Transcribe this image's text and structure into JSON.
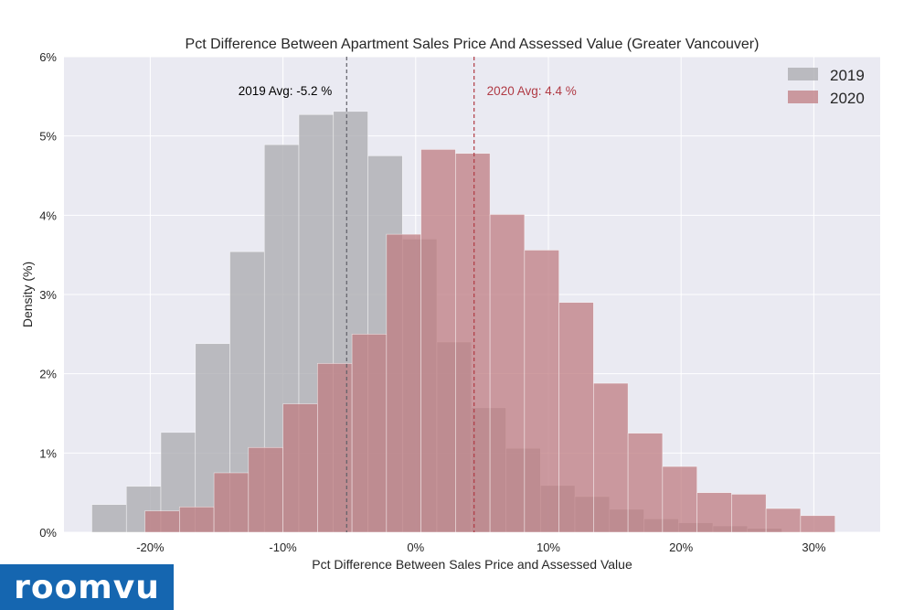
{
  "brand": {
    "logo_text": "roomvu",
    "color": "#1566b0"
  },
  "chart_data": {
    "type": "histogram",
    "title": "Pct Difference Between Apartment Sales Price And Assessed Value (Greater Vancouver)",
    "xlabel": "Pct Difference Between Sales Price and Assessed Value",
    "ylabel": "Density (%)",
    "xlim": [
      -26.5,
      35
    ],
    "ylim": [
      0,
      6
    ],
    "x_ticks": [
      -20,
      -10,
      0,
      10,
      20,
      30
    ],
    "x_tick_labels": [
      "-20%",
      "-10%",
      "0%",
      "10%",
      "20%",
      "30%"
    ],
    "y_ticks": [
      0,
      1,
      2,
      3,
      4,
      5,
      6
    ],
    "y_tick_labels": [
      "0%",
      "1%",
      "2%",
      "3%",
      "4%",
      "5%",
      "6%"
    ],
    "grid": true,
    "legend_position": "top-right",
    "series": [
      {
        "name": "2019",
        "color": "#a9a9ae",
        "bin_start": -24.4,
        "bin_width": 2.6,
        "values": [
          0.35,
          0.58,
          1.26,
          2.38,
          3.54,
          4.89,
          5.27,
          5.31,
          4.75,
          3.7,
          2.4,
          1.57,
          1.06,
          0.59,
          0.45,
          0.29,
          0.17,
          0.12,
          0.08,
          0.05
        ]
      },
      {
        "name": "2020",
        "color": "#bf7c82",
        "bin_start": -20.4,
        "bin_width": 2.6,
        "values": [
          0.27,
          0.32,
          0.75,
          1.07,
          1.62,
          2.13,
          2.5,
          3.76,
          4.83,
          4.78,
          4.01,
          3.56,
          2.9,
          1.88,
          1.25,
          0.83,
          0.5,
          0.48,
          0.3,
          0.21
        ]
      }
    ],
    "reference_lines": [
      {
        "x": -5.2,
        "label": "2019 Avg: -5.2 %",
        "color": "#606068",
        "text_color": "#000000"
      },
      {
        "x": 4.4,
        "label": "2020 Avg: 4.4 %",
        "color": "#b03a44",
        "text_color": "#b03a44"
      }
    ]
  }
}
